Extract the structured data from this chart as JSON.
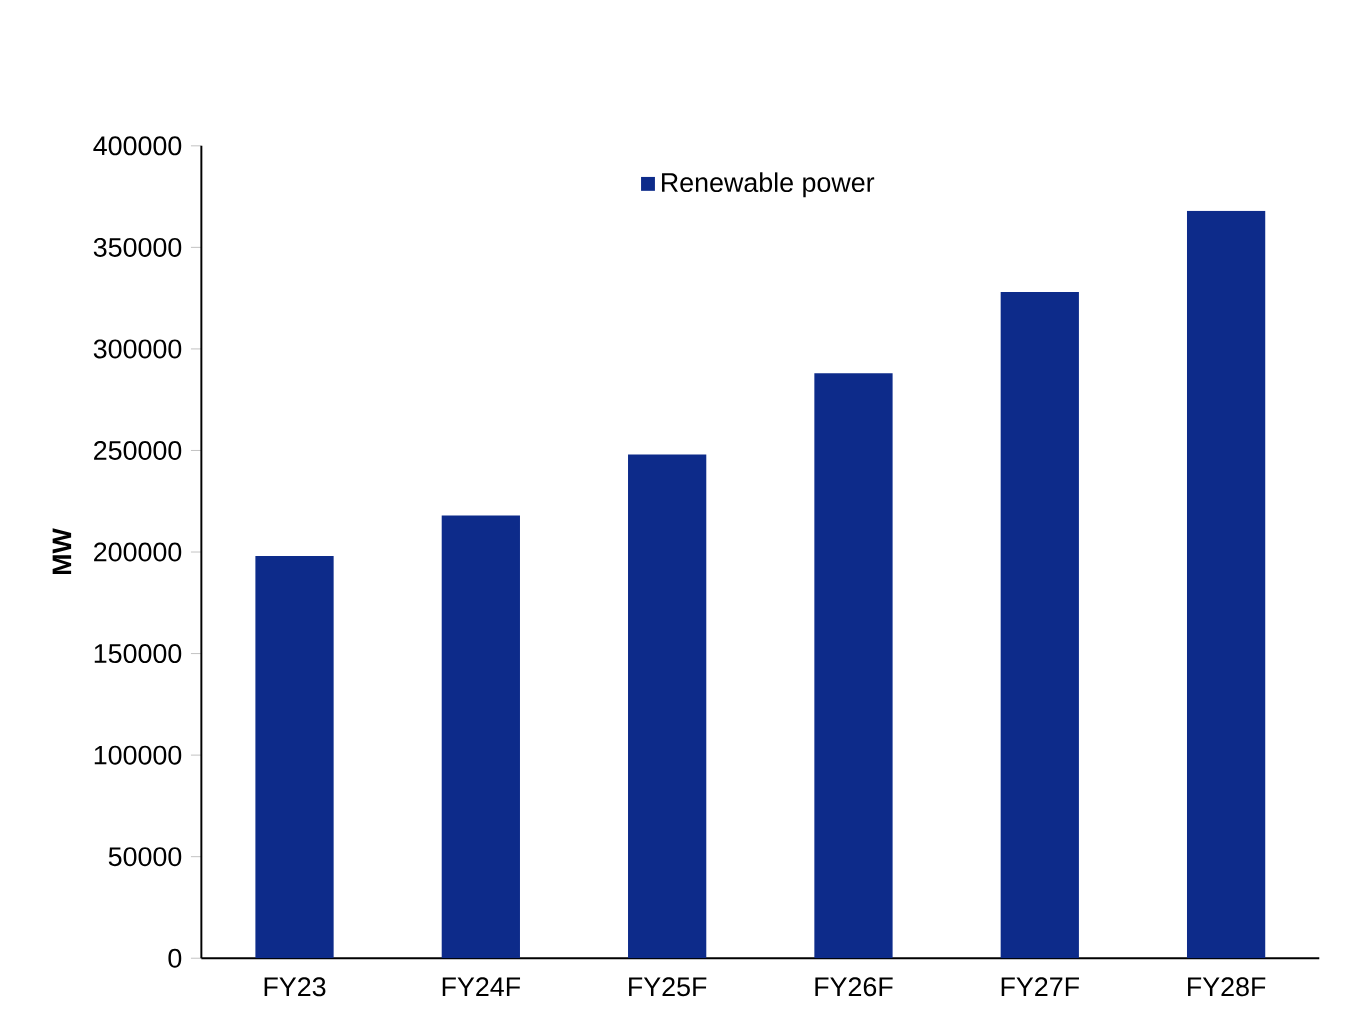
{
  "chart_data": {
    "type": "bar",
    "ylabel": "MW",
    "categories": [
      "FY23",
      "FY24F",
      "FY25F",
      "FY26F",
      "FY27F",
      "FY28F"
    ],
    "series": [
      {
        "name": "Renewable power",
        "color": "#0d2b8a",
        "values": [
          198000,
          218000,
          248000,
          288000,
          328000,
          368000
        ]
      }
    ],
    "ylim": [
      0,
      400000
    ],
    "yticks": [
      0,
      50000,
      100000,
      150000,
      200000,
      250000,
      300000,
      350000,
      400000
    ],
    "grid": false,
    "legend": "top"
  }
}
